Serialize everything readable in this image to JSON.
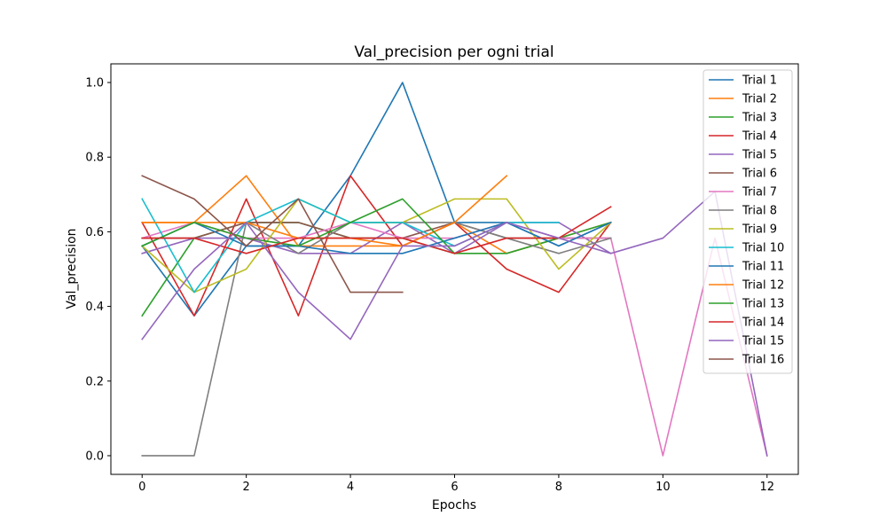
{
  "chart_data": {
    "type": "line",
    "title": "Val_precision per ogni trial",
    "xlabel": "Epochs",
    "ylabel": "Val_precision",
    "xlim": [
      -0.6,
      12.6
    ],
    "ylim": [
      -0.05,
      1.05
    ],
    "xticks": [
      0,
      2,
      4,
      6,
      8,
      10,
      12
    ],
    "yticks": [
      0.0,
      0.2,
      0.4,
      0.6,
      0.8,
      1.0
    ],
    "grid": false,
    "legend_position": "top-right",
    "series": [
      {
        "name": "Trial 1",
        "color": "#1f77b4",
        "values": [
          0.562,
          0.375,
          0.562,
          0.562,
          0.75,
          1.0,
          0.625,
          0.625,
          0.562,
          0.625
        ]
      },
      {
        "name": "Trial 2",
        "color": "#ff7f0e",
        "values": [
          0.625,
          0.625,
          0.75,
          0.562,
          0.562,
          0.562,
          0.625,
          0.542,
          0.583,
          0.625
        ]
      },
      {
        "name": "Trial 3",
        "color": "#2ca02c",
        "values": [
          0.375,
          0.583,
          0.625,
          0.625,
          0.583,
          0.583,
          0.542,
          0.542,
          0.583,
          0.625
        ]
      },
      {
        "name": "Trial 4",
        "color": "#d62728",
        "values": [
          0.625,
          0.375,
          0.688,
          0.375,
          0.75,
          0.562,
          0.625,
          0.5,
          0.438,
          0.625
        ]
      },
      {
        "name": "Trial 5",
        "color": "#9467bd",
        "values": [
          0.542,
          0.583,
          0.583,
          0.542,
          0.542,
          0.625,
          0.542,
          0.625,
          0.625,
          0.542
        ]
      },
      {
        "name": "Trial 6",
        "color": "#8c564b",
        "values": [
          0.583,
          0.583,
          0.625,
          0.625,
          0.583,
          0.583,
          0.625,
          0.583,
          0.583,
          0.583
        ]
      },
      {
        "name": "Trial 7",
        "color": "#e377c2",
        "values": [
          0.583,
          0.625,
          0.583,
          0.583,
          0.625,
          0.583,
          0.583,
          0.625,
          0.583,
          0.583,
          0.0,
          0.583,
          0.0
        ]
      },
      {
        "name": "Trial 8",
        "color": "#7f7f7f",
        "values": [
          0.0,
          0.0,
          0.625,
          0.542,
          0.625,
          0.625,
          0.625,
          0.583,
          0.542,
          0.583
        ]
      },
      {
        "name": "Trial 9",
        "color": "#bcbd22",
        "values": [
          0.562,
          0.438,
          0.5,
          0.688,
          0.625,
          0.625,
          0.688,
          0.688,
          0.5,
          0.625
        ]
      },
      {
        "name": "Trial 10",
        "color": "#17becf",
        "values": [
          0.688,
          0.438,
          0.625,
          0.688,
          0.625,
          0.625,
          0.562,
          0.625,
          0.625
        ]
      },
      {
        "name": "Trial 11",
        "color": "#1f77b4",
        "values": [
          0.562,
          0.625,
          0.562,
          0.562,
          0.542,
          0.542,
          0.583,
          0.625,
          0.562,
          0.625
        ]
      },
      {
        "name": "Trial 12",
        "color": "#ff7f0e",
        "values": [
          0.625,
          0.625,
          0.625,
          0.583,
          0.583,
          0.562,
          0.625,
          0.75
        ]
      },
      {
        "name": "Trial 13",
        "color": "#2ca02c",
        "values": [
          0.562,
          0.625,
          0.583,
          0.562,
          0.625,
          0.688,
          0.542
        ]
      },
      {
        "name": "Trial 14",
        "color": "#d62728",
        "values": [
          0.583,
          0.583,
          0.542,
          0.583,
          0.583,
          0.583,
          0.542,
          0.583,
          0.583,
          0.667
        ]
      },
      {
        "name": "Trial 15",
        "color": "#9467bd",
        "values": [
          0.312,
          0.5,
          0.625,
          0.438,
          0.312,
          0.562,
          0.562,
          0.625,
          0.583,
          0.542,
          0.583,
          0.708,
          0.0
        ]
      },
      {
        "name": "Trial 16",
        "color": "#8c564b",
        "values": [
          0.75,
          0.688,
          0.562,
          0.688,
          0.438,
          0.438
        ]
      }
    ]
  }
}
